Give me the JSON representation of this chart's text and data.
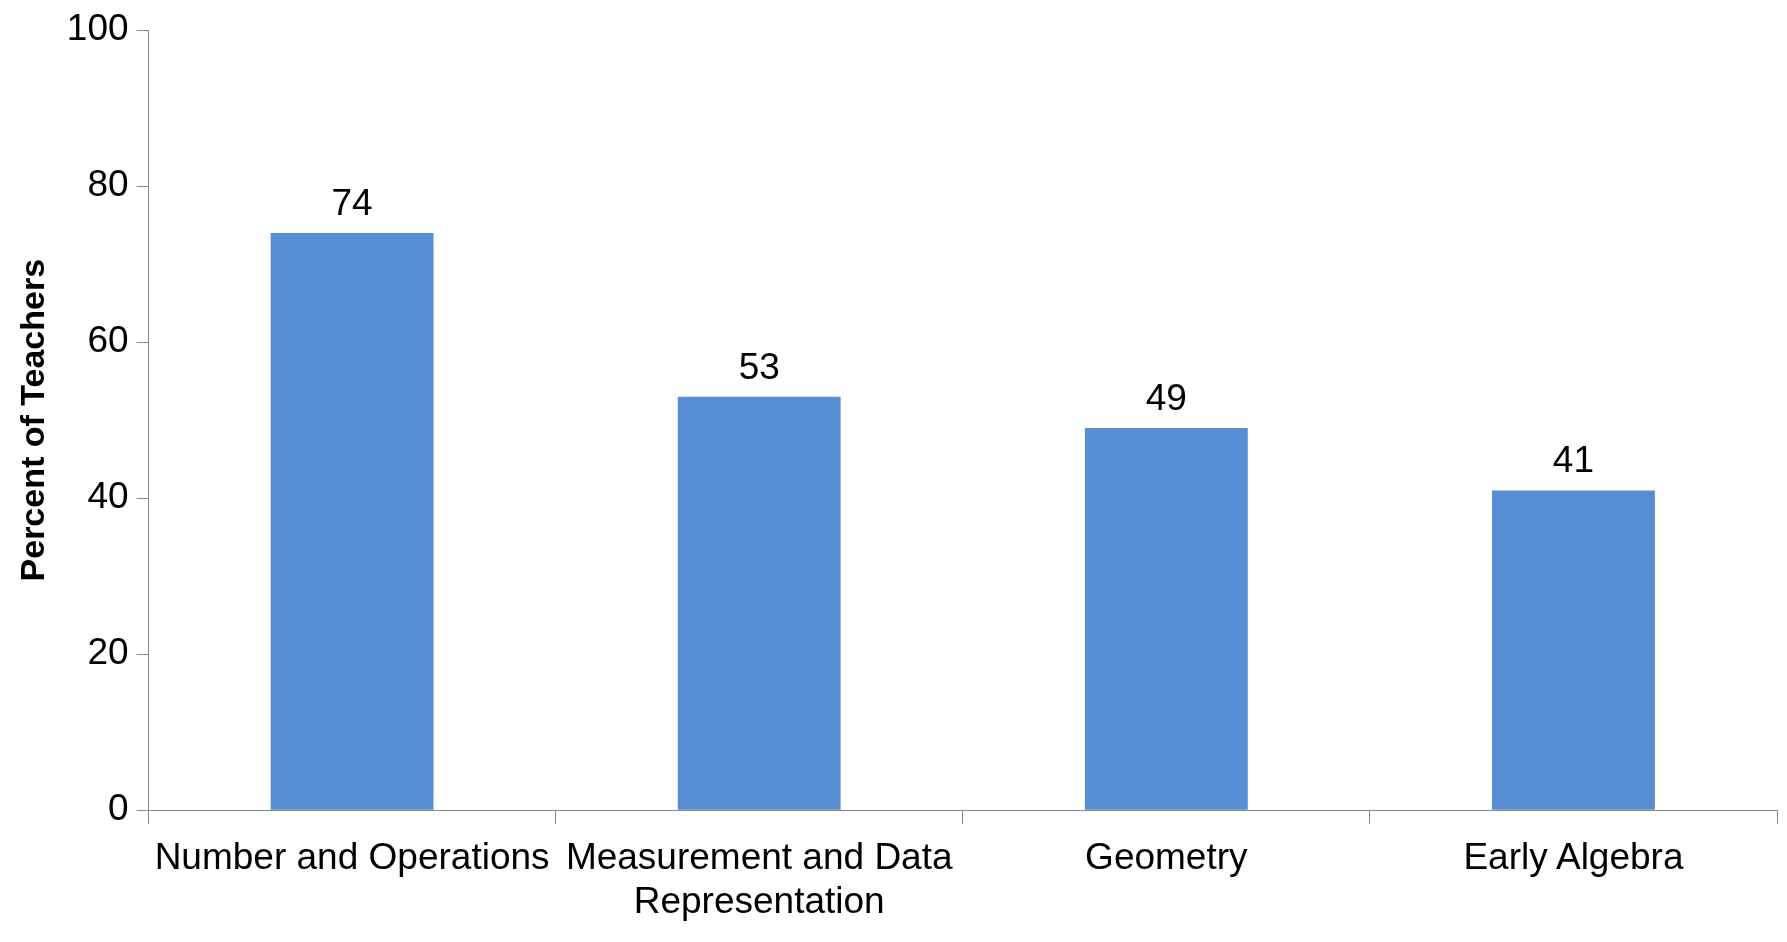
{
  "chart_data": {
    "type": "bar",
    "ylabel": "Percent of Teachers",
    "categories": [
      "Number and Operations",
      "Measurement and Data Representation",
      "Geometry",
      "Early Algebra"
    ],
    "values": [
      74,
      53,
      49,
      41
    ],
    "color": "#558ed5",
    "ylim": [
      0,
      100
    ],
    "yticks": [
      0,
      20,
      40,
      60,
      80,
      100
    ],
    "grid": false,
    "data_labels": true
  }
}
